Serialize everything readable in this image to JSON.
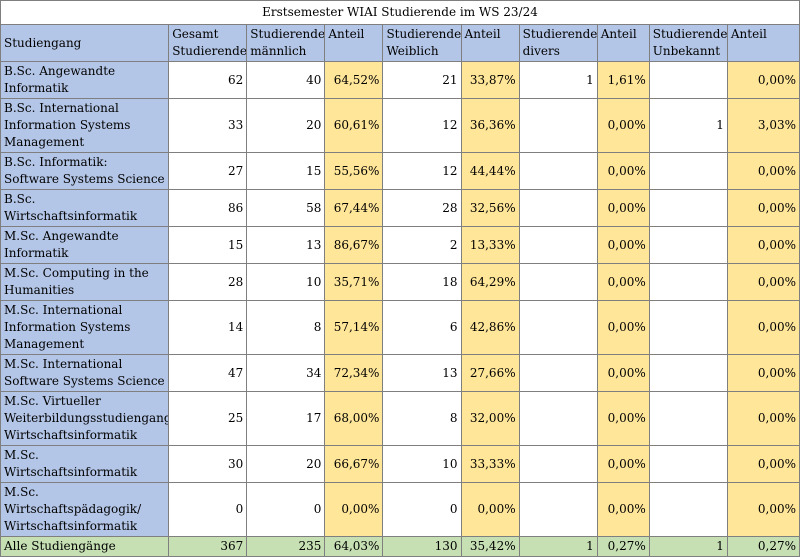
{
  "title": "Erstsemester WIAI Studierende im WS 23/24",
  "headers": {
    "program": "Studiengang",
    "total": "Gesamt Studierende",
    "male": "Studierende männlich",
    "share_male": "Anteil",
    "female": "Studierende Weiblich",
    "share_female": "Anteil",
    "diverse": "Studierende divers",
    "share_diverse": "Anteil",
    "unknown": "Studierende Unbekannt",
    "share_unknown": "Anteil"
  },
  "rows": [
    {
      "program": "B.Sc. Angewandte Informatik",
      "total": "62",
      "male": "40",
      "share_male": "64,52%",
      "female": "21",
      "share_female": "33,87%",
      "diverse": "1",
      "share_diverse": "1,61%",
      "unknown": "",
      "share_unknown": "0,00%"
    },
    {
      "program": "B.Sc. International Information Systems Management",
      "total": "33",
      "male": "20",
      "share_male": "60,61%",
      "female": "12",
      "share_female": "36,36%",
      "diverse": "",
      "share_diverse": "0,00%",
      "unknown": "1",
      "share_unknown": "3,03%"
    },
    {
      "program": "B.Sc. Informatik: Software Systems Science",
      "total": "27",
      "male": "15",
      "share_male": "55,56%",
      "female": "12",
      "share_female": "44,44%",
      "diverse": "",
      "share_diverse": "0,00%",
      "unknown": "",
      "share_unknown": "0,00%"
    },
    {
      "program": "B.Sc. Wirtschaftsinformatik",
      "total": "86",
      "male": "58",
      "share_male": "67,44%",
      "female": "28",
      "share_female": "32,56%",
      "diverse": "",
      "share_diverse": "0,00%",
      "unknown": "",
      "share_unknown": "0,00%"
    },
    {
      "program": "M.Sc. Angewandte Informatik",
      "total": "15",
      "male": "13",
      "share_male": "86,67%",
      "female": "2",
      "share_female": "13,33%",
      "diverse": "",
      "share_diverse": "0,00%",
      "unknown": "",
      "share_unknown": "0,00%"
    },
    {
      "program": "M.Sc. Computing in the Humanities",
      "total": "28",
      "male": "10",
      "share_male": "35,71%",
      "female": "18",
      "share_female": "64,29%",
      "diverse": "",
      "share_diverse": "0,00%",
      "unknown": "",
      "share_unknown": "0,00%"
    },
    {
      "program": "M.Sc. International Information Systems Management",
      "total": "14",
      "male": "8",
      "share_male": "57,14%",
      "female": "6",
      "share_female": "42,86%",
      "diverse": "",
      "share_diverse": "0,00%",
      "unknown": "",
      "share_unknown": "0,00%"
    },
    {
      "program": "M.Sc. International Software Systems Science",
      "total": "47",
      "male": "34",
      "share_male": "72,34%",
      "female": "13",
      "share_female": "27,66%",
      "diverse": "",
      "share_diverse": "0,00%",
      "unknown": "",
      "share_unknown": "0,00%"
    },
    {
      "program": "M.Sc. Virtueller Weiterbildungsstudiengang Wirtschaftsinformatik",
      "total": "25",
      "male": "17",
      "share_male": "68,00%",
      "female": "8",
      "share_female": "32,00%",
      "diverse": "",
      "share_diverse": "0,00%",
      "unknown": "",
      "share_unknown": "0,00%"
    },
    {
      "program": "M.Sc. Wirtschaftsinformatik",
      "total": "30",
      "male": "20",
      "share_male": "66,67%",
      "female": "10",
      "share_female": "33,33%",
      "diverse": "",
      "share_diverse": "0,00%",
      "unknown": "",
      "share_unknown": "0,00%"
    },
    {
      "program": "M.Sc. Wirtschaftspädagogik/ Wirtschaftsinformatik",
      "total": "0",
      "male": "0",
      "share_male": "0,00%",
      "female": "0",
      "share_female": "0,00%",
      "diverse": "",
      "share_diverse": "0,00%",
      "unknown": "",
      "share_unknown": "0,00%"
    }
  ],
  "totals": {
    "program": "Alle Studiengänge",
    "total": "367",
    "male": "235",
    "share_male": "64,03%",
    "female": "130",
    "share_female": "35,42%",
    "diverse": "1",
    "share_diverse": "0,27%",
    "unknown": "1",
    "share_unknown": "0,27%"
  },
  "colors": {
    "header_fill": "#b4c6e7",
    "share_fill": "#ffe699",
    "total_fill": "#c6e0b4",
    "grid": "#7f7f7f"
  }
}
